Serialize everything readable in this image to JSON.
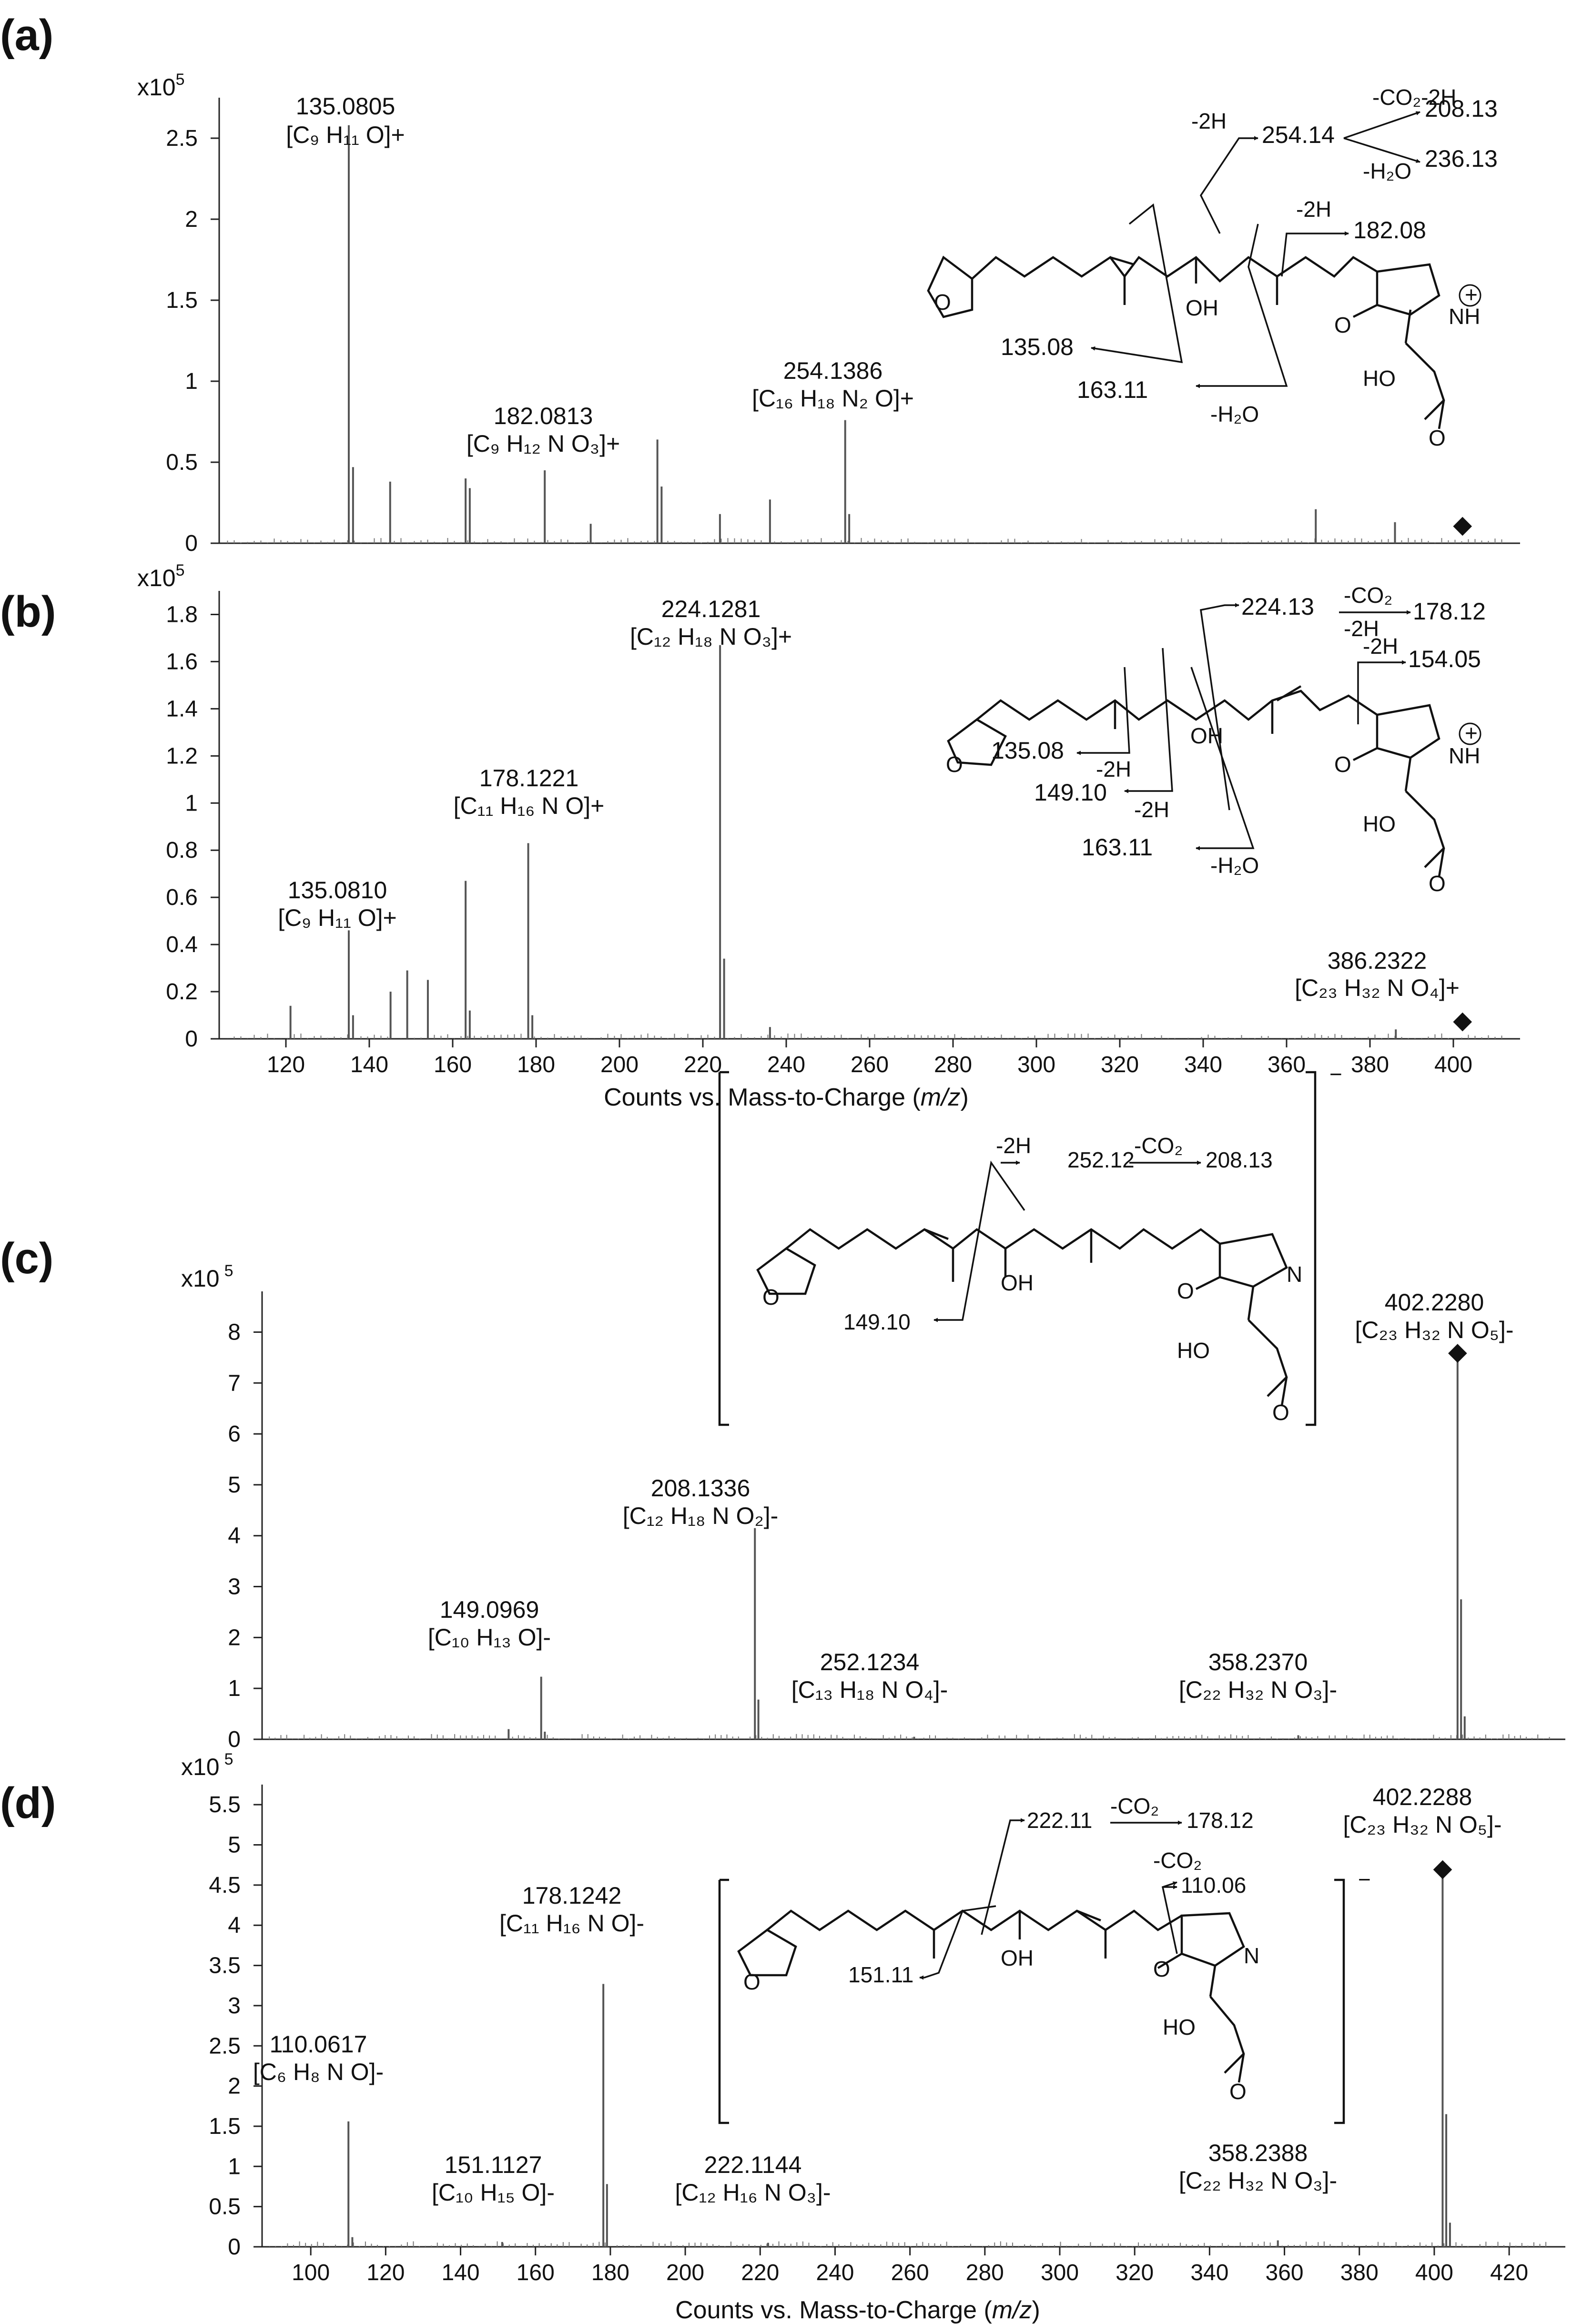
{
  "figure": {
    "xlabel_prefix": "Counts vs. Mass-to-Charge (",
    "xlabel_italic": "m/z",
    "xlabel_suffix": ")",
    "structure_labels": {
      "furan_o": "O",
      "oh": "OH",
      "ring_o": "O",
      "nh": "NH",
      "n": "N",
      "plus": "+",
      "ho": "HO",
      "acid_o": "O",
      "minus": "−"
    }
  },
  "chart_data": [
    {
      "panel": "(a)",
      "type": "bar",
      "unit_base": "x10",
      "unit_exp": "5",
      "xlim": [
        104,
        416
      ],
      "ylim": [
        0,
        2.75
      ],
      "yticks": [
        "0",
        "0.5",
        "1",
        "1.5",
        "2",
        "2.5"
      ],
      "ytick_values": [
        0,
        0.5,
        1,
        1.5,
        2,
        2.5
      ],
      "xticks": [],
      "peaks": [
        {
          "mz": 135.0805,
          "value": 2.58
        },
        {
          "mz": 136.1,
          "value": 0.47
        },
        {
          "mz": 145.0,
          "value": 0.38
        },
        {
          "mz": 163.1,
          "value": 0.4
        },
        {
          "mz": 164.1,
          "value": 0.34
        },
        {
          "mz": 182.0813,
          "value": 0.45
        },
        {
          "mz": 209.1,
          "value": 0.64
        },
        {
          "mz": 210.1,
          "value": 0.35
        },
        {
          "mz": 254.1386,
          "value": 0.76
        },
        {
          "mz": 255.1,
          "value": 0.18
        },
        {
          "mz": 236.1,
          "value": 0.27
        },
        {
          "mz": 224.1,
          "value": 0.18
        },
        {
          "mz": 193.1,
          "value": 0.12
        },
        {
          "mz": 367.0,
          "value": 0.21
        },
        {
          "mz": 386.0,
          "value": 0.13
        }
      ],
      "annotations": [
        {
          "mz_label": "135.0805",
          "formula": "[C₉ H₁₁ O]+"
        },
        {
          "mz_label": "182.0813",
          "formula": "[C₉ H₁₂ N O₃]+"
        },
        {
          "mz_label": "254.1386",
          "formula": "[C₁₆ H₁₈ N₂ O]+"
        }
      ],
      "precursor_marker": {
        "mz": 402.2,
        "symbol": "◆"
      },
      "fragment_labels": [
        "254.14",
        "208.13",
        "236.13",
        "182.08",
        "135.08",
        "163.11"
      ],
      "loss_labels": [
        "-CO₂-2H",
        "-H₂O",
        "-2H",
        "-2H",
        "-H₂O"
      ]
    },
    {
      "panel": "(b)",
      "type": "bar",
      "unit_base": "x10",
      "unit_exp": "5",
      "xlim": [
        104,
        416
      ],
      "ylim": [
        0,
        1.9
      ],
      "yticks": [
        "0",
        "0.2",
        "0.4",
        "0.6",
        "0.8",
        "1",
        "1.2",
        "1.4",
        "1.6",
        "1.8"
      ],
      "ytick_values": [
        0,
        0.2,
        0.4,
        0.6,
        0.8,
        1,
        1.2,
        1.4,
        1.6,
        1.8
      ],
      "xticks": [
        "120",
        "140",
        "160",
        "180",
        "200",
        "220",
        "240",
        "260",
        "280",
        "300",
        "320",
        "340",
        "360",
        "380",
        "400"
      ],
      "xtick_values": [
        120,
        140,
        160,
        180,
        200,
        220,
        240,
        260,
        280,
        300,
        320,
        340,
        360,
        380,
        400
      ],
      "peaks": [
        {
          "mz": 121.1,
          "value": 0.14
        },
        {
          "mz": 135.081,
          "value": 0.46
        },
        {
          "mz": 136.1,
          "value": 0.1
        },
        {
          "mz": 145.1,
          "value": 0.2
        },
        {
          "mz": 149.1,
          "value": 0.29
        },
        {
          "mz": 154.05,
          "value": 0.25
        },
        {
          "mz": 163.1,
          "value": 0.67
        },
        {
          "mz": 164.1,
          "value": 0.12
        },
        {
          "mz": 178.1221,
          "value": 0.83
        },
        {
          "mz": 179.1,
          "value": 0.1
        },
        {
          "mz": 224.1281,
          "value": 1.67
        },
        {
          "mz": 225.1,
          "value": 0.34
        },
        {
          "mz": 236.1,
          "value": 0.05
        },
        {
          "mz": 386.2,
          "value": 0.04
        }
      ],
      "annotations": [
        {
          "mz_label": "135.0810",
          "formula": "[C₉ H₁₁ O]+"
        },
        {
          "mz_label": "178.1221",
          "formula": "[C₁₁ H₁₆ N O]+"
        },
        {
          "mz_label": "224.1281",
          "formula": "[C₁₂ H₁₈ N O₃]+"
        },
        {
          "mz_label": "386.2322",
          "formula": "[C₂₃ H₃₂ N O₄]+"
        }
      ],
      "precursor_marker": {
        "mz": 402.2,
        "symbol": "◆"
      },
      "fragment_labels": [
        "224.13",
        "178.12",
        "154.05",
        "135.08",
        "149.10",
        "163.11"
      ],
      "loss_labels": [
        "-CO₂",
        "-2H",
        "-2H",
        "-2H",
        "-2H",
        "-H₂O"
      ]
    },
    {
      "panel": "(c)",
      "type": "bar",
      "unit_base": "x10",
      "unit_exp": "5",
      "xlim": [
        72,
        432
      ],
      "ylim": [
        0,
        8.8
      ],
      "yticks": [
        "0",
        "1",
        "2",
        "3",
        "4",
        "5",
        "6",
        "7",
        "8"
      ],
      "ytick_values": [
        0,
        1,
        2,
        3,
        4,
        5,
        6,
        7,
        8
      ],
      "xticks": [],
      "peaks": [
        {
          "mz": 140.1,
          "value": 0.2
        },
        {
          "mz": 149.0969,
          "value": 1.23
        },
        {
          "mz": 150.1,
          "value": 0.15
        },
        {
          "mz": 208.1336,
          "value": 4.15
        },
        {
          "mz": 209.1,
          "value": 0.78
        },
        {
          "mz": 252.1234,
          "value": 0.05
        },
        {
          "mz": 358.237,
          "value": 0.08
        },
        {
          "mz": 402.228,
          "value": 7.55
        },
        {
          "mz": 403.2,
          "value": 2.75
        },
        {
          "mz": 404.2,
          "value": 0.45
        }
      ],
      "annotations": [
        {
          "mz_label": "149.0969",
          "formula": "[C₁₀ H₁₃ O]-"
        },
        {
          "mz_label": "208.1336",
          "formula": "[C₁₂ H₁₈ N O₂]-"
        },
        {
          "mz_label": "252.1234",
          "formula": "[C₁₃ H₁₈ N O₄]-"
        },
        {
          "mz_label": "358.2370",
          "formula": "[C₂₂ H₃₂ N O₃]-"
        },
        {
          "mz_label": "402.2280",
          "formula": "[C₂₃ H₃₂ N O₅]-"
        }
      ],
      "precursor_marker": {
        "mz": 402.228,
        "symbol": "◆"
      },
      "fragment_labels": [
        "252.12",
        "208.13",
        "149.10"
      ],
      "loss_labels": [
        "-2H",
        "-CO₂"
      ]
    },
    {
      "panel": "(d)",
      "type": "bar",
      "unit_base": "x10",
      "unit_exp": "5",
      "xlim": [
        87,
        435
      ],
      "ylim": [
        0,
        5.75
      ],
      "yticks": [
        "0",
        "0.5",
        "1",
        "1.5",
        "2",
        "2.5",
        "3",
        "3.5",
        "4",
        "4.5",
        "5",
        "5.5"
      ],
      "ytick_values": [
        0,
        0.5,
        1,
        1.5,
        2,
        2.5,
        3,
        3.5,
        4,
        4.5,
        5,
        5.5
      ],
      "xticks": [
        "100",
        "120",
        "140",
        "160",
        "180",
        "200",
        "220",
        "240",
        "260",
        "280",
        "300",
        "320",
        "340",
        "360",
        "380",
        "400",
        "420"
      ],
      "xtick_values": [
        100,
        120,
        140,
        160,
        180,
        200,
        220,
        240,
        260,
        280,
        300,
        320,
        340,
        360,
        380,
        400,
        420
      ],
      "peaks": [
        {
          "mz": 110.0617,
          "value": 1.56
        },
        {
          "mz": 111.1,
          "value": 0.12
        },
        {
          "mz": 151.1127,
          "value": 0.06
        },
        {
          "mz": 178.1242,
          "value": 3.27
        },
        {
          "mz": 179.1,
          "value": 0.78
        },
        {
          "mz": 222.1144,
          "value": 0.05
        },
        {
          "mz": 358.2388,
          "value": 0.08
        },
        {
          "mz": 402.2288,
          "value": 4.67
        },
        {
          "mz": 403.2,
          "value": 1.65
        },
        {
          "mz": 404.2,
          "value": 0.3
        }
      ],
      "annotations": [
        {
          "mz_label": "110.0617",
          "formula": "[C₆ H₈ N O]-"
        },
        {
          "mz_label": "151.1127",
          "formula": "[C₁₀ H₁₅ O]-"
        },
        {
          "mz_label": "178.1242",
          "formula": "[C₁₁ H₁₆ N O]-"
        },
        {
          "mz_label": "222.1144",
          "formula": "[C₁₂ H₁₆ N O₃]-"
        },
        {
          "mz_label": "358.2388",
          "formula": "[C₂₂ H₃₂ N O₃]-"
        },
        {
          "mz_label": "402.2288",
          "formula": "[C₂₃ H₃₂ N O₅]-"
        }
      ],
      "precursor_marker": {
        "mz": 402.2288,
        "symbol": "◆"
      },
      "fragment_labels": [
        "222.11",
        "178.12",
        "110.06",
        "151.11"
      ],
      "loss_labels": [
        "-CO₂",
        "-CO₂"
      ]
    }
  ]
}
